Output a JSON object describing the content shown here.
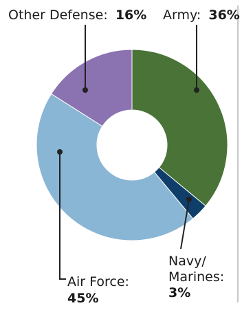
{
  "chart_data": {
    "type": "pie",
    "donut": true,
    "title": "",
    "slices": [
      {
        "name": "Army",
        "value": 36,
        "display": "36%",
        "color": "#4a7337"
      },
      {
        "name": "Navy/ Marines",
        "value": 3,
        "display": "3%",
        "color": "#0f3e6a"
      },
      {
        "name": "Air Force",
        "value": 45,
        "display": "45%",
        "color": "#8ab6d5"
      },
      {
        "name": "Other Defense",
        "value": 16,
        "display": "16%",
        "color": "#8b72b0"
      }
    ],
    "labels": {
      "army": {
        "name": "Army:",
        "value": "36%"
      },
      "navy_line1": "Navy/",
      "navy_line2": "Marines:",
      "navy_value": "3%",
      "airforce_name": "Air Force:",
      "airforce_value": "45%",
      "other": {
        "name": "Other Defense:",
        "value": "16%"
      }
    },
    "colors": {
      "leader_line": "#222222",
      "divider": "#c8c8c8"
    }
  }
}
